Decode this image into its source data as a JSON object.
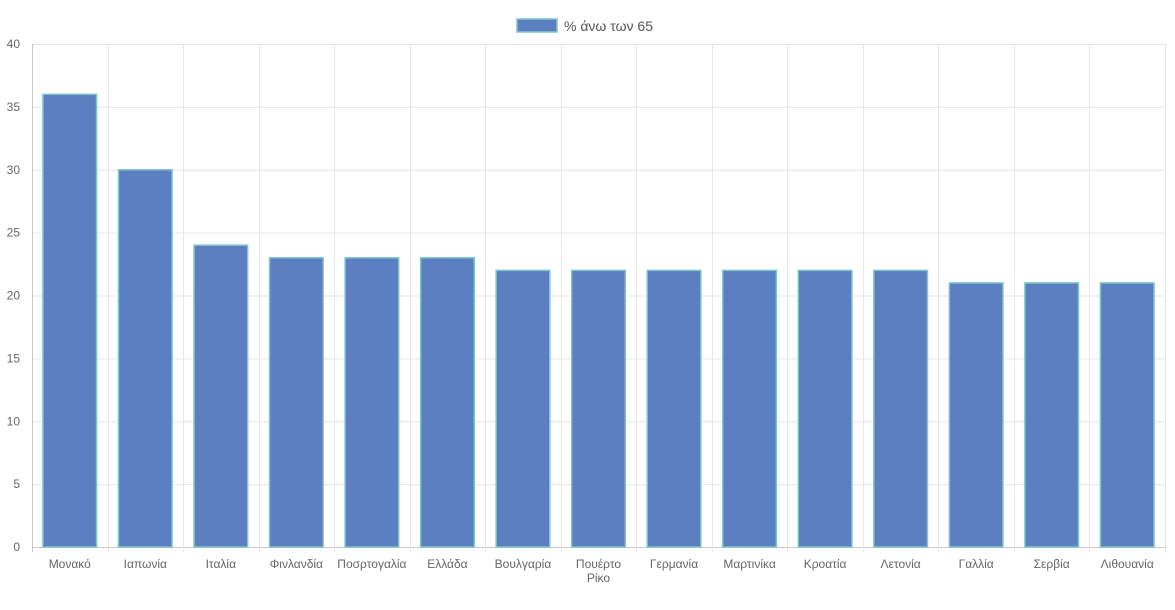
{
  "chart_data": {
    "type": "bar",
    "categories": [
      "Μονακό",
      "Ιαπωνία",
      "Ιταλία",
      "Φινλανδία",
      "Πoσρτογαλία",
      "Ελλάδα",
      "Βουλγαρία",
      "Πουέρτο Ρίκο",
      "Γερμανία",
      "Μαρτινίκα",
      "Κροατία",
      "Λετονία",
      "Γαλλία",
      "Σερβία",
      "Λιθουανία"
    ],
    "series": [
      {
        "name": "% άνω των 65",
        "values": [
          36,
          30,
          24,
          23,
          23,
          23,
          22,
          22,
          22,
          22,
          22,
          22,
          21,
          21,
          21
        ],
        "color": "#5b7fc1",
        "border_color": "#7fc6c9"
      }
    ],
    "ylim": [
      0,
      40
    ],
    "y_ticks": [
      0,
      5,
      10,
      15,
      20,
      25,
      30,
      35,
      40
    ],
    "grid": true,
    "legend_position": "top-center",
    "title": "",
    "xlabel": "",
    "ylabel": ""
  }
}
